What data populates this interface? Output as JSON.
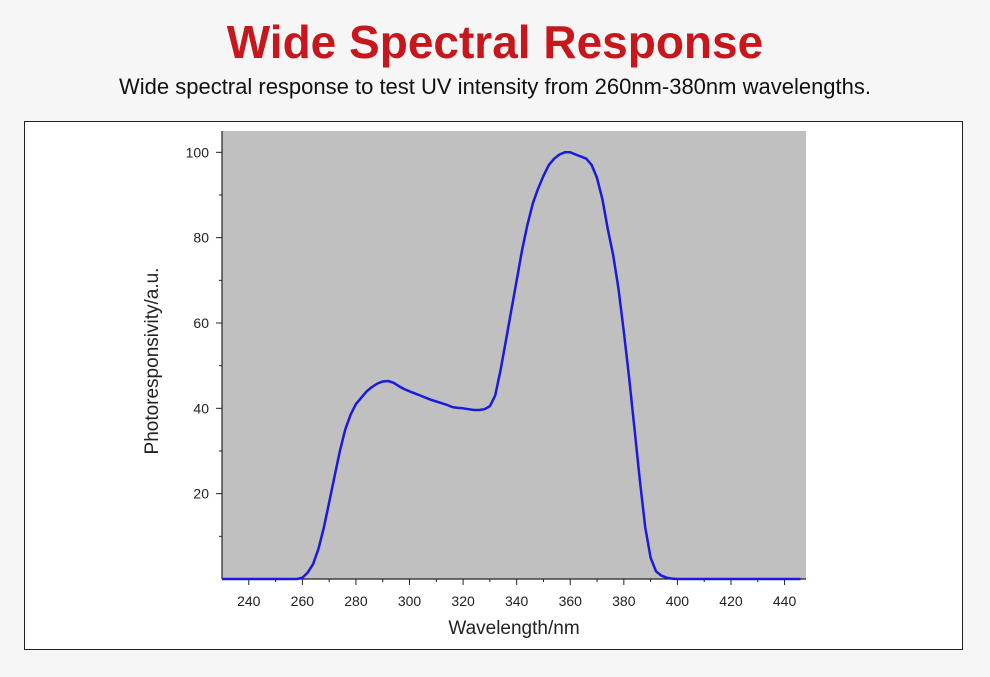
{
  "header": {
    "title": "Wide Spectral Response",
    "subtitle": "Wide spectral response to test UV intensity from 260nm-380nm wavelengths."
  },
  "colors": {
    "title": "#c8161d",
    "plot_background": "#c0c0c0",
    "series_line": "#1a1adc"
  },
  "chart_data": {
    "type": "line",
    "title": "",
    "xlabel": "Wavelength/nm",
    "ylabel": "Photoresponsivity/a.u.",
    "xlim": [
      230,
      448
    ],
    "ylim": [
      0,
      105
    ],
    "x_ticks": [
      240,
      260,
      280,
      300,
      320,
      340,
      360,
      380,
      400,
      420,
      440
    ],
    "y_ticks": [
      20,
      40,
      60,
      80,
      100
    ],
    "grid": false,
    "series": [
      {
        "x": [
          230,
          240,
          250,
          255,
          258,
          260,
          262,
          264,
          266,
          268,
          270,
          272,
          274,
          276,
          278,
          280,
          282,
          284,
          286,
          288,
          290,
          292,
          294,
          296,
          298,
          300,
          302,
          304,
          306,
          308,
          310,
          312,
          314,
          316,
          318,
          320,
          322,
          324,
          326,
          328,
          330,
          332,
          334,
          336,
          338,
          340,
          342,
          344,
          346,
          348,
          350,
          352,
          354,
          356,
          358,
          360,
          362,
          364,
          366,
          368,
          370,
          372,
          374,
          376,
          378,
          380,
          382,
          384,
          386,
          388,
          390,
          392,
          394,
          396,
          398,
          400,
          402,
          405,
          410,
          420,
          430,
          440,
          446
        ],
        "y": [
          0,
          0,
          0,
          0,
          0,
          0.3,
          1.5,
          3.5,
          7,
          12,
          18,
          24,
          30,
          35,
          38.5,
          41,
          42.5,
          44,
          45,
          45.8,
          46.3,
          46.4,
          46,
          45.2,
          44.5,
          44,
          43.5,
          43,
          42.5,
          42,
          41.6,
          41.2,
          40.8,
          40.3,
          40.1,
          40,
          39.8,
          39.6,
          39.6,
          39.8,
          40.5,
          43,
          49,
          56,
          63,
          70,
          77,
          83,
          88,
          91.5,
          94.5,
          97,
          98.5,
          99.5,
          100,
          100,
          99.5,
          99,
          98.5,
          97,
          94,
          89,
          82,
          76,
          68,
          58,
          47,
          35,
          23,
          12,
          5,
          1.8,
          0.8,
          0.3,
          0.1,
          0,
          0,
          0,
          0,
          0,
          0,
          0,
          0
        ]
      }
    ]
  }
}
